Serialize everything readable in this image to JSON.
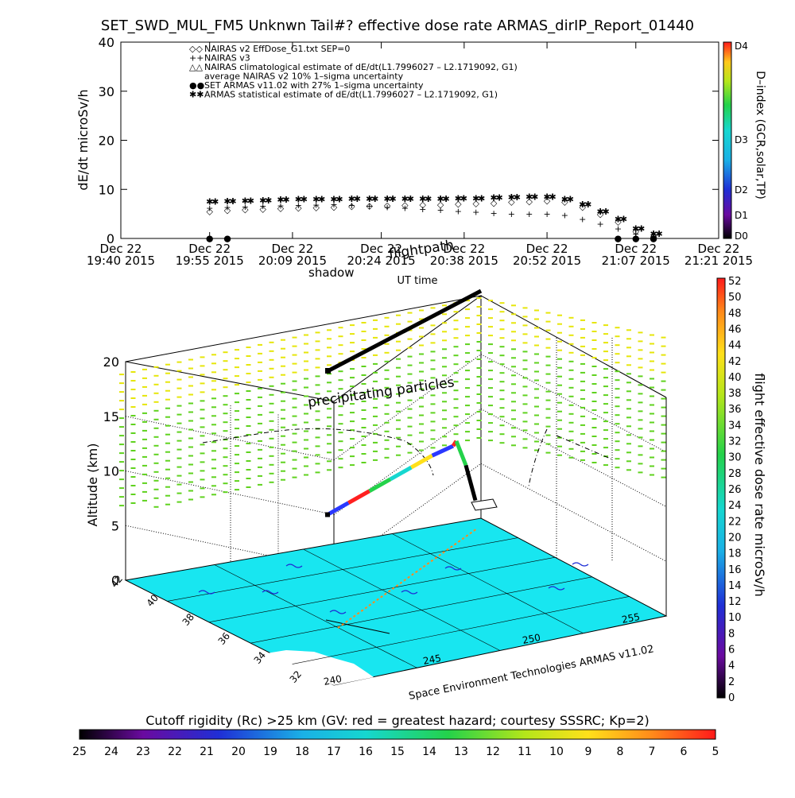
{
  "title": "SET_SWD_MUL_FM5 Unknwn Tail#? effective dose rate ARMAS_dirIP_Report_01440",
  "top_chart": {
    "ylabel": "dE/dt microSv/h",
    "xlabel": "UT time",
    "yticks": [
      "0",
      "10",
      "20",
      "30",
      "40"
    ],
    "xticks": [
      {
        "date": "Dec 22",
        "time": "19:40 2015"
      },
      {
        "date": "Dec 22",
        "time": "19:55 2015"
      },
      {
        "date": "Dec 22",
        "time": "20:09 2015"
      },
      {
        "date": "Dec 22",
        "time": "20:24 2015"
      },
      {
        "date": "Dec 22",
        "time": "20:38 2015"
      },
      {
        "date": "Dec 22",
        "time": "20:52 2015"
      },
      {
        "date": "Dec 22",
        "time": "21:07 2015"
      },
      {
        "date": "Dec 22",
        "time": "21:21 2015"
      }
    ],
    "legend": [
      {
        "sym": "◇◇",
        "text": "NAIRAS v2 EffDose_G1.txt SEP=0",
        "color": "#000000"
      },
      {
        "sym": "++",
        "text": "NAIRAS v3",
        "color": "#000000"
      },
      {
        "sym": "△△",
        "text": "NAIRAS climatological estimate of dE/dt(L1.7996027 – L2.1719092, G1)",
        "color": "#000000"
      },
      {
        "sym": "",
        "text": "average NAIRAS v2 10% 1–sigma uncertainty",
        "color": "#000000"
      },
      {
        "sym": "●●",
        "text": "SET ARMAS v11.02 with 27% 1–sigma uncertainty",
        "color": "#1f2fd6"
      },
      {
        "sym": "✱✱",
        "text": "ARMAS statistical estimate of dE/dt(L1.7996027 – L2.1719092, G1)",
        "color": "#000000"
      }
    ],
    "dindex_label": "D–index (GCR,solar,TP)",
    "dindex_ticks": [
      "D4",
      "D3",
      "D2",
      "D1",
      "D0"
    ]
  },
  "chart_data": [
    {
      "type": "scatter",
      "title": "SET_SWD_MUL_FM5 Unknwn Tail#? effective dose rate ARMAS_dirIP_Report_01440",
      "xlabel": "UT time",
      "ylabel": "dE/dt microSv/h",
      "xlim": [
        "19:40",
        "21:21"
      ],
      "ylim": [
        0,
        40
      ],
      "x": [
        "19:55",
        "19:58",
        "20:01",
        "20:04",
        "20:07",
        "20:10",
        "20:13",
        "20:16",
        "20:19",
        "20:22",
        "20:25",
        "20:28",
        "20:31",
        "20:34",
        "20:37",
        "20:40",
        "20:43",
        "20:46",
        "20:49",
        "20:52",
        "20:55",
        "20:58",
        "21:01",
        "21:04",
        "21:07",
        "21:10"
      ],
      "series": [
        {
          "name": "NAIRAS v2 EffDose_G1.txt SEP=0",
          "values": [
            5.6,
            5.8,
            6.0,
            6.1,
            6.2,
            6.3,
            6.4,
            6.5,
            6.6,
            6.7,
            6.8,
            6.9,
            7.0,
            7.0,
            7.1,
            7.2,
            7.3,
            7.5,
            7.6,
            7.8,
            7.5,
            6.5,
            5.0,
            3.5,
            1.5,
            0.5
          ]
        },
        {
          "name": "NAIRAS v3",
          "values": [
            6.2,
            6.4,
            6.5,
            6.6,
            6.7,
            6.8,
            6.9,
            7.0,
            6.8,
            6.6,
            6.4,
            6.2,
            6.0,
            5.8,
            5.6,
            5.4,
            5.2,
            5.0,
            5.0,
            5.0,
            4.8,
            4.0,
            3.0,
            2.0,
            1.0,
            0.5
          ]
        },
        {
          "name": "SET ARMAS v11.02 with 27% 1–sigma uncertainty",
          "values": [
            0.1,
            0.1,
            null,
            null,
            null,
            null,
            null,
            null,
            null,
            null,
            null,
            null,
            null,
            null,
            null,
            null,
            null,
            null,
            null,
            null,
            null,
            null,
            null,
            0.1,
            0.1,
            0.1
          ]
        },
        {
          "name": "ARMAS statistical estimate of dE/dt(L1.7996027 – L2.1719092, G1)",
          "values": [
            7.5,
            7.6,
            7.7,
            7.8,
            7.9,
            8.0,
            8.0,
            8.0,
            8.1,
            8.1,
            8.1,
            8.1,
            8.1,
            8.1,
            8.2,
            8.2,
            8.3,
            8.4,
            8.5,
            8.5,
            8.0,
            7.0,
            5.5,
            4.0,
            2.0,
            1.0
          ]
        }
      ]
    },
    {
      "type": "scatter",
      "title": "",
      "xlabel": "",
      "ylabel": "Altitude (km)",
      "zticks": [
        "0",
        "5",
        "10",
        "15",
        "20"
      ],
      "lat_ticks": [
        "42",
        "40",
        "38",
        "36",
        "34",
        "32"
      ],
      "lon_ticks": [
        "240",
        "245",
        "250",
        "255"
      ],
      "annotations": [
        "flightpath",
        "shadow",
        "precipitating particles"
      ],
      "footer": "Space Environment Technologies ARMAS v11.02",
      "flight_altitude_km": [
        6,
        7,
        8,
        9,
        10,
        11,
        11.8,
        11.5,
        9.5,
        6.5
      ]
    }
  ],
  "right_colorbar": {
    "label": "flight effective dose rate microSv/h",
    "ticks": [
      "0",
      "2",
      "4",
      "6",
      "8",
      "10",
      "12",
      "14",
      "16",
      "18",
      "20",
      "22",
      "24",
      "26",
      "28",
      "30",
      "32",
      "34",
      "36",
      "38",
      "40",
      "42",
      "44",
      "46",
      "48",
      "50",
      "52"
    ]
  },
  "bottom_colorbar": {
    "label": "Cutoff rigidity (Rc) >25 km (GV: red = greatest hazard; courtesy SSSRC; Kp=2)",
    "ticks": [
      "25",
      "24",
      "23",
      "22",
      "21",
      "20",
      "19",
      "18",
      "17",
      "16",
      "15",
      "14",
      "13",
      "12",
      "11",
      "10",
      "9",
      "8",
      "7",
      "6",
      "5"
    ]
  },
  "colors": {
    "map_fill": "#18e6f0",
    "particles_yellow": "#e6e60a",
    "particles_green": "#5fd21e"
  }
}
